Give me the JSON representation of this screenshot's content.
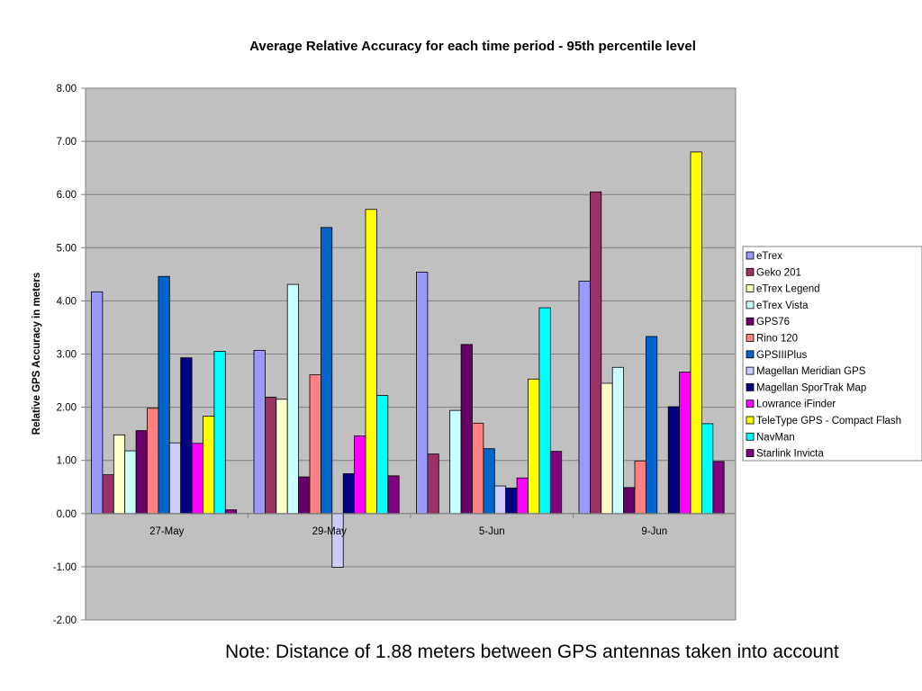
{
  "chart_data": {
    "type": "bar",
    "title": "Average Relative Accuracy for each time period - 95th percentile level",
    "ylabel": "Relative GPS Accuracy in meters",
    "xlabel": "",
    "ylim": [
      -2,
      8
    ],
    "yticks": [
      "-2.00",
      "-1.00",
      "0.00",
      "1.00",
      "2.00",
      "3.00",
      "4.00",
      "5.00",
      "6.00",
      "7.00",
      "8.00"
    ],
    "categories": [
      "27-May",
      "29-May",
      "5-Jun",
      "9-Jun"
    ],
    "grid": true,
    "legend_position": "right",
    "series": [
      {
        "name": "eTrex",
        "color": "#9999ff",
        "values": [
          4.17,
          3.07,
          4.54,
          4.37
        ]
      },
      {
        "name": "Geko 201",
        "color": "#993366",
        "values": [
          0.73,
          2.19,
          1.12,
          6.05
        ]
      },
      {
        "name": "eTrex Legend",
        "color": "#ffffcc",
        "values": [
          1.48,
          2.15,
          0.0,
          2.45
        ]
      },
      {
        "name": "eTrex Vista",
        "color": "#ccffff",
        "values": [
          1.18,
          4.31,
          1.94,
          2.75
        ]
      },
      {
        "name": "GPS76",
        "color": "#660066",
        "values": [
          1.56,
          0.69,
          3.18,
          0.49
        ]
      },
      {
        "name": "Rino 120",
        "color": "#ff8080",
        "values": [
          1.98,
          2.61,
          1.7,
          0.99
        ]
      },
      {
        "name": "GPSIIIPlus",
        "color": "#0066cc",
        "values": [
          4.46,
          5.38,
          1.22,
          3.33
        ]
      },
      {
        "name": "Magellan Meridian GPS",
        "color": "#ccccff",
        "values": [
          1.33,
          -1.01,
          0.52,
          0.0
        ]
      },
      {
        "name": "Magellan SporTrak Map",
        "color": "#000080",
        "values": [
          2.93,
          0.75,
          0.48,
          2.01
        ]
      },
      {
        "name": "Lowrance iFinder",
        "color": "#ff00ff",
        "values": [
          1.32,
          1.46,
          0.67,
          2.66
        ]
      },
      {
        "name": "TeleType GPS - Compact Flash",
        "color": "#ffff00",
        "values": [
          1.83,
          5.72,
          2.53,
          6.8
        ]
      },
      {
        "name": "NavMan",
        "color": "#00ffff",
        "values": [
          3.05,
          2.22,
          3.87,
          1.69
        ]
      },
      {
        "name": "Starlink Invicta",
        "color": "#800080",
        "values": [
          0.07,
          0.71,
          1.17,
          0.98
        ]
      }
    ]
  },
  "note": "Note: Distance of 1.88 meters between GPS antennas taken into account"
}
